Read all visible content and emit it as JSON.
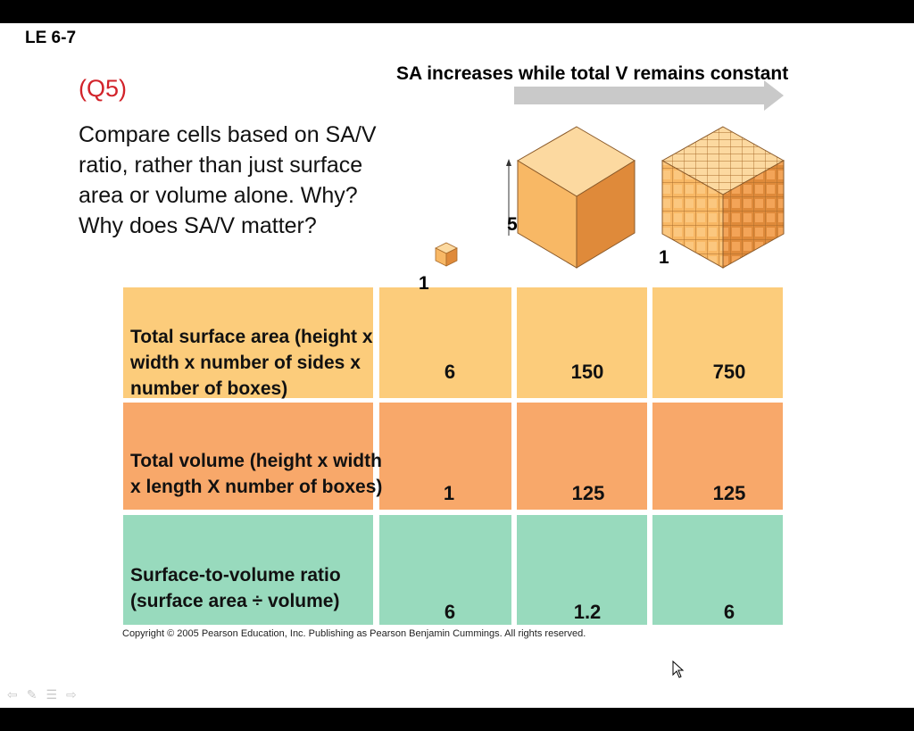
{
  "slide": {
    "id_label": "LE 6-7",
    "question_number": "(Q5)",
    "question_text": "Compare cells based on SA/V ratio, rather than just surface area or volume alone. Why? Why does SA/V matter?",
    "arrow_caption": "SA increases while total V remains constant",
    "copyright": "Copyright © 2005 Pearson Education, Inc. Publishing as Pearson Benjamin Cummings. All rights reserved."
  },
  "figure": {
    "small_cube_side": "1",
    "large_cube_side": "5",
    "grid_cube_side": "1",
    "colors": {
      "cube_top": "#fcd9a0",
      "cube_left": "#f8b865",
      "cube_right": "#df8a3a"
    }
  },
  "table": {
    "rows": [
      {
        "label": "Total surface area (height x width x number of sides x number of boxes)",
        "values": [
          "6",
          "150",
          "750"
        ],
        "color": "#fccc7b"
      },
      {
        "label": "Total volume (height x width x length X number of boxes)",
        "values": [
          "1",
          "125",
          "125"
        ],
        "color": "#f8a86a"
      },
      {
        "label": "Surface-to-volume ratio (surface area ÷ volume)",
        "values": [
          "6",
          "1.2",
          "6"
        ],
        "color": "#98dabd"
      }
    ]
  },
  "controls": {
    "icons": [
      "prev-arrow-icon",
      "pen-icon",
      "menu-icon",
      "next-arrow-icon"
    ]
  }
}
